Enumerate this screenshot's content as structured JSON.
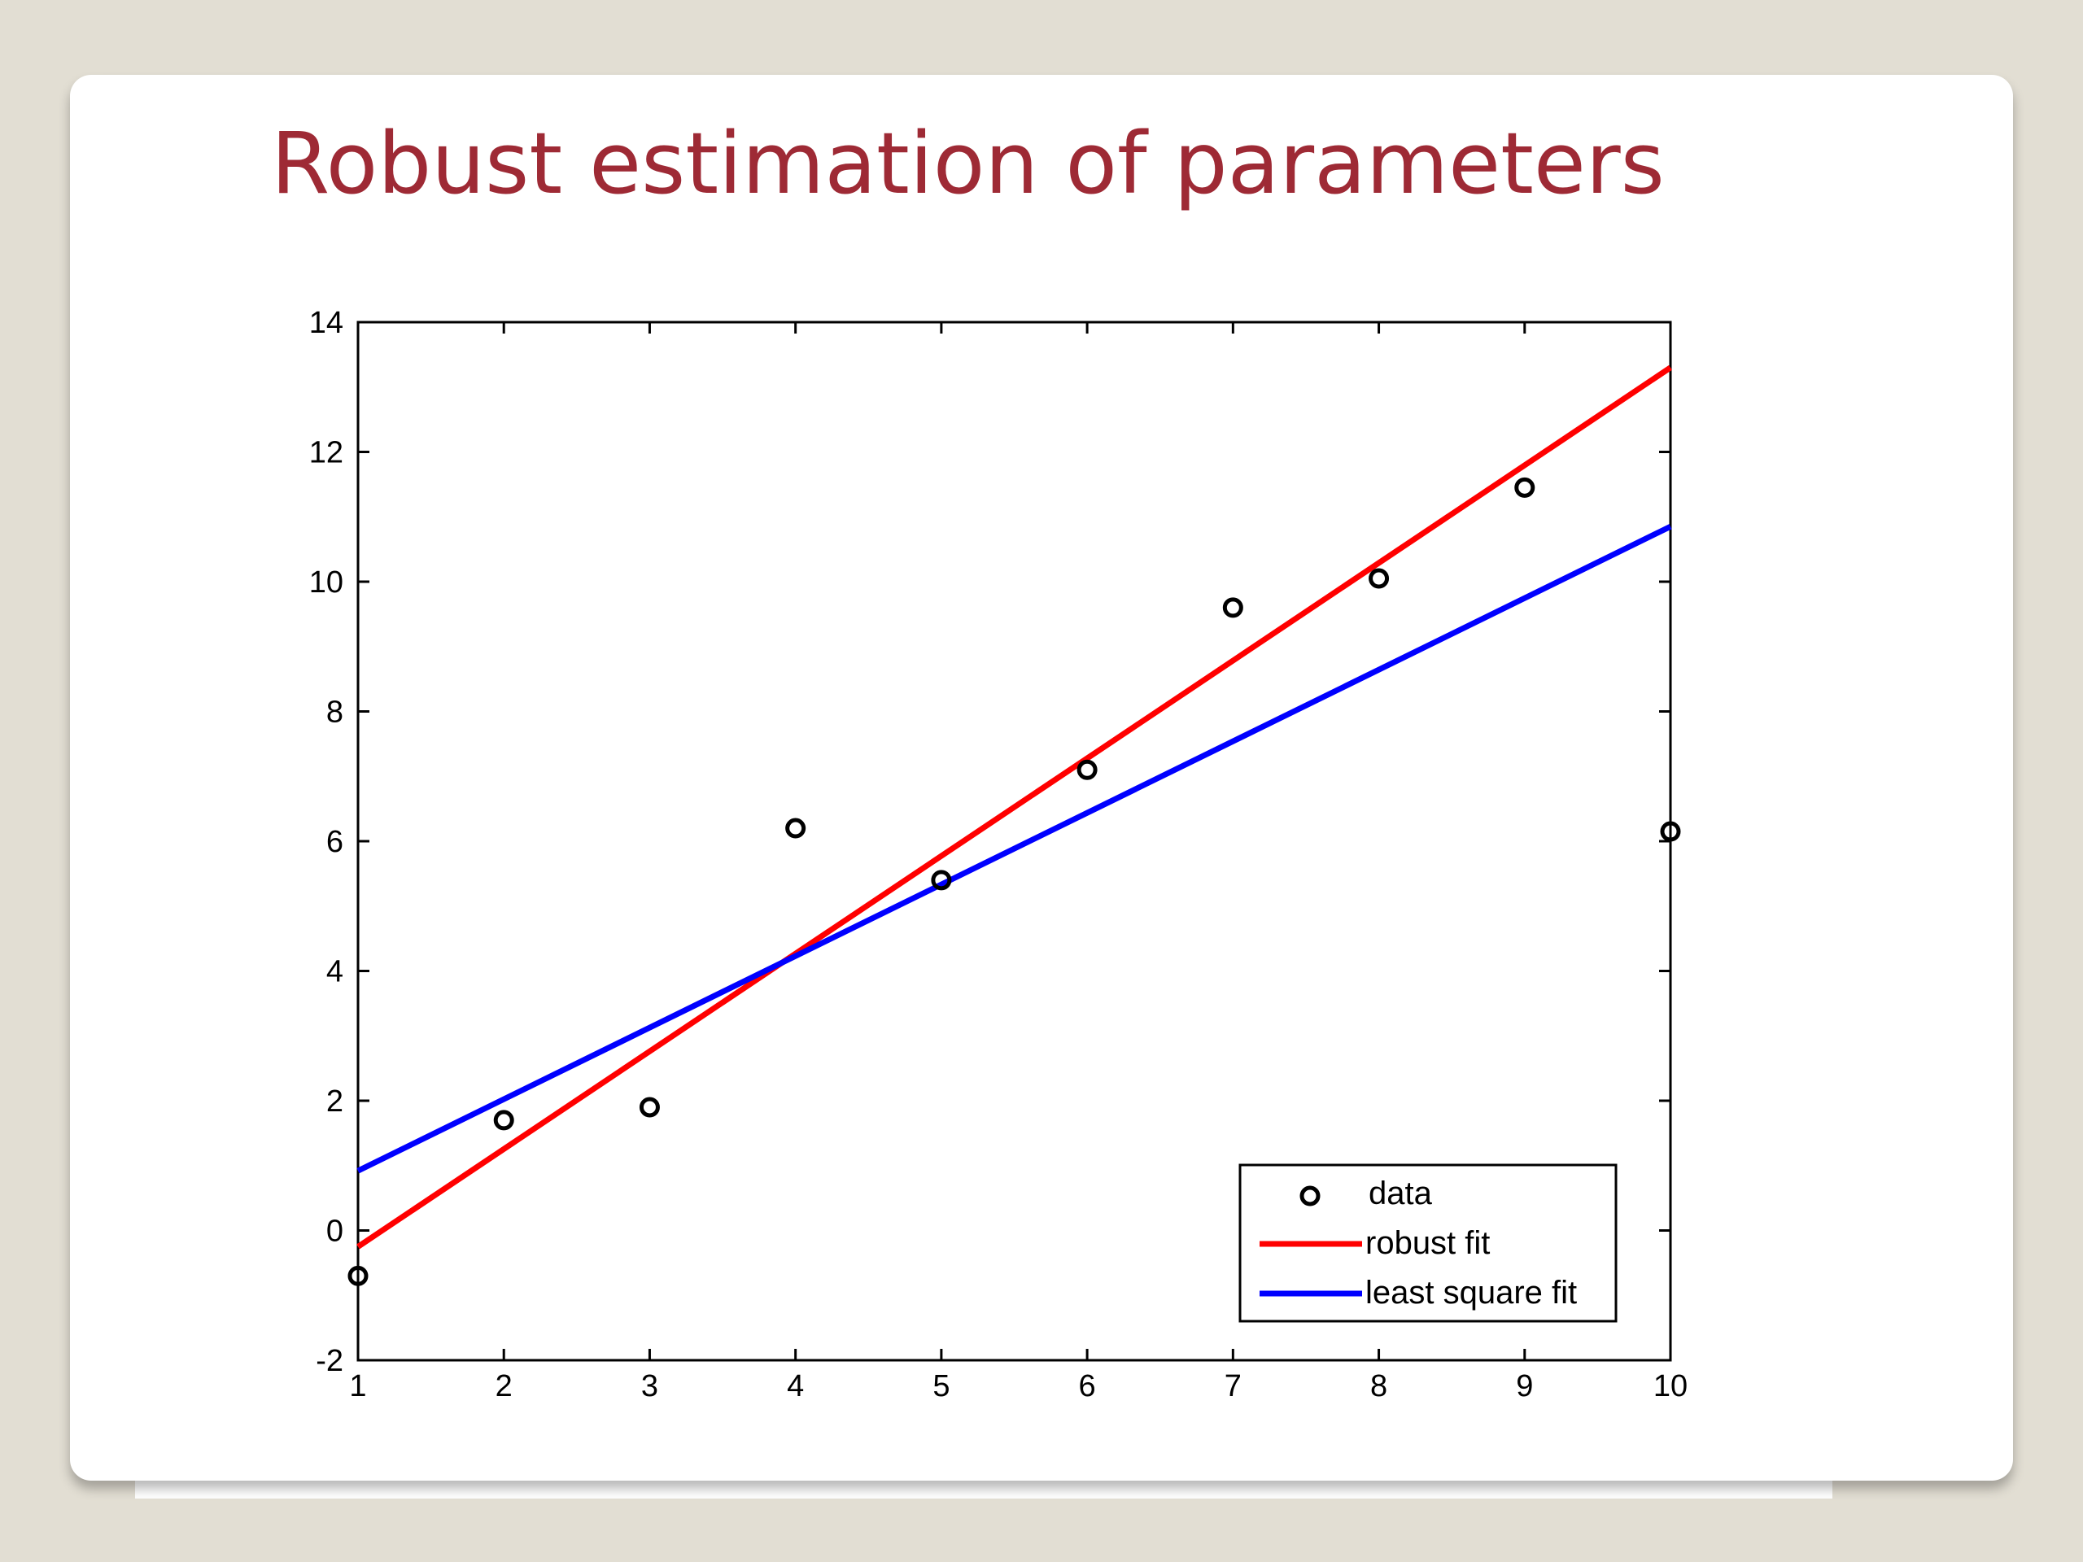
{
  "slide": {
    "title": "Robust estimation of parameters"
  },
  "chart_data": {
    "type": "scatter",
    "title": "",
    "xlabel": "",
    "ylabel": "",
    "xlim": [
      1,
      10
    ],
    "ylim": [
      -2,
      14
    ],
    "xticks": [
      1,
      2,
      3,
      4,
      5,
      6,
      7,
      8,
      9,
      10
    ],
    "yticks": [
      -2,
      0,
      2,
      4,
      6,
      8,
      10,
      12,
      14
    ],
    "grid": false,
    "legend_position": "bottom-right",
    "series": [
      {
        "name": "data",
        "kind": "markers",
        "marker": "circle",
        "color": "#000000",
        "x": [
          1,
          2,
          3,
          4,
          5,
          6,
          7,
          8,
          9,
          10
        ],
        "y": [
          -0.7,
          1.7,
          1.9,
          6.2,
          5.4,
          7.1,
          9.6,
          10.05,
          11.45,
          6.15
        ]
      },
      {
        "name": "robust fit",
        "kind": "line",
        "color": "#ff0000",
        "x": [
          1,
          10
        ],
        "y": [
          -0.25,
          13.3
        ]
      },
      {
        "name": "least square fit",
        "kind": "line",
        "color": "#0000ff",
        "x": [
          1,
          10
        ],
        "y": [
          0.92,
          10.85
        ]
      }
    ]
  }
}
